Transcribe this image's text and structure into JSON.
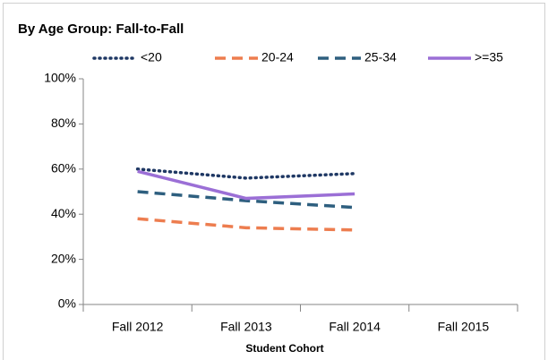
{
  "chart_data": {
    "type": "line",
    "title": "By Age Group: Fall-to-Fall",
    "x_label": "Student Cohort",
    "categories": [
      "Fall 2012",
      "Fall 2013",
      "Fall 2014",
      "Fall 2015"
    ],
    "series": [
      {
        "name": "<20",
        "color": "#1f3864",
        "style": "dotted",
        "values": [
          60,
          56,
          58,
          null
        ]
      },
      {
        "name": "20-24",
        "color": "#ed7d4f",
        "style": "dashed",
        "values": [
          38,
          34,
          33,
          null
        ]
      },
      {
        "name": "25-34",
        "color": "#2e5f7f",
        "style": "dashed",
        "values": [
          50,
          46,
          43,
          null
        ]
      },
      {
        "name": ">=35",
        "color": "#9b6fd6",
        "style": "solid",
        "values": [
          59,
          47,
          49,
          null
        ]
      }
    ],
    "ylim": [
      0,
      100
    ],
    "yticks": [
      {
        "value": 0,
        "label": "0%"
      },
      {
        "value": 20,
        "label": "20%"
      },
      {
        "value": 40,
        "label": "40%"
      },
      {
        "value": 60,
        "label": "60%"
      },
      {
        "value": 80,
        "label": "80%"
      },
      {
        "value": 100,
        "label": "100%"
      }
    ],
    "grid": false,
    "legend": "top"
  }
}
